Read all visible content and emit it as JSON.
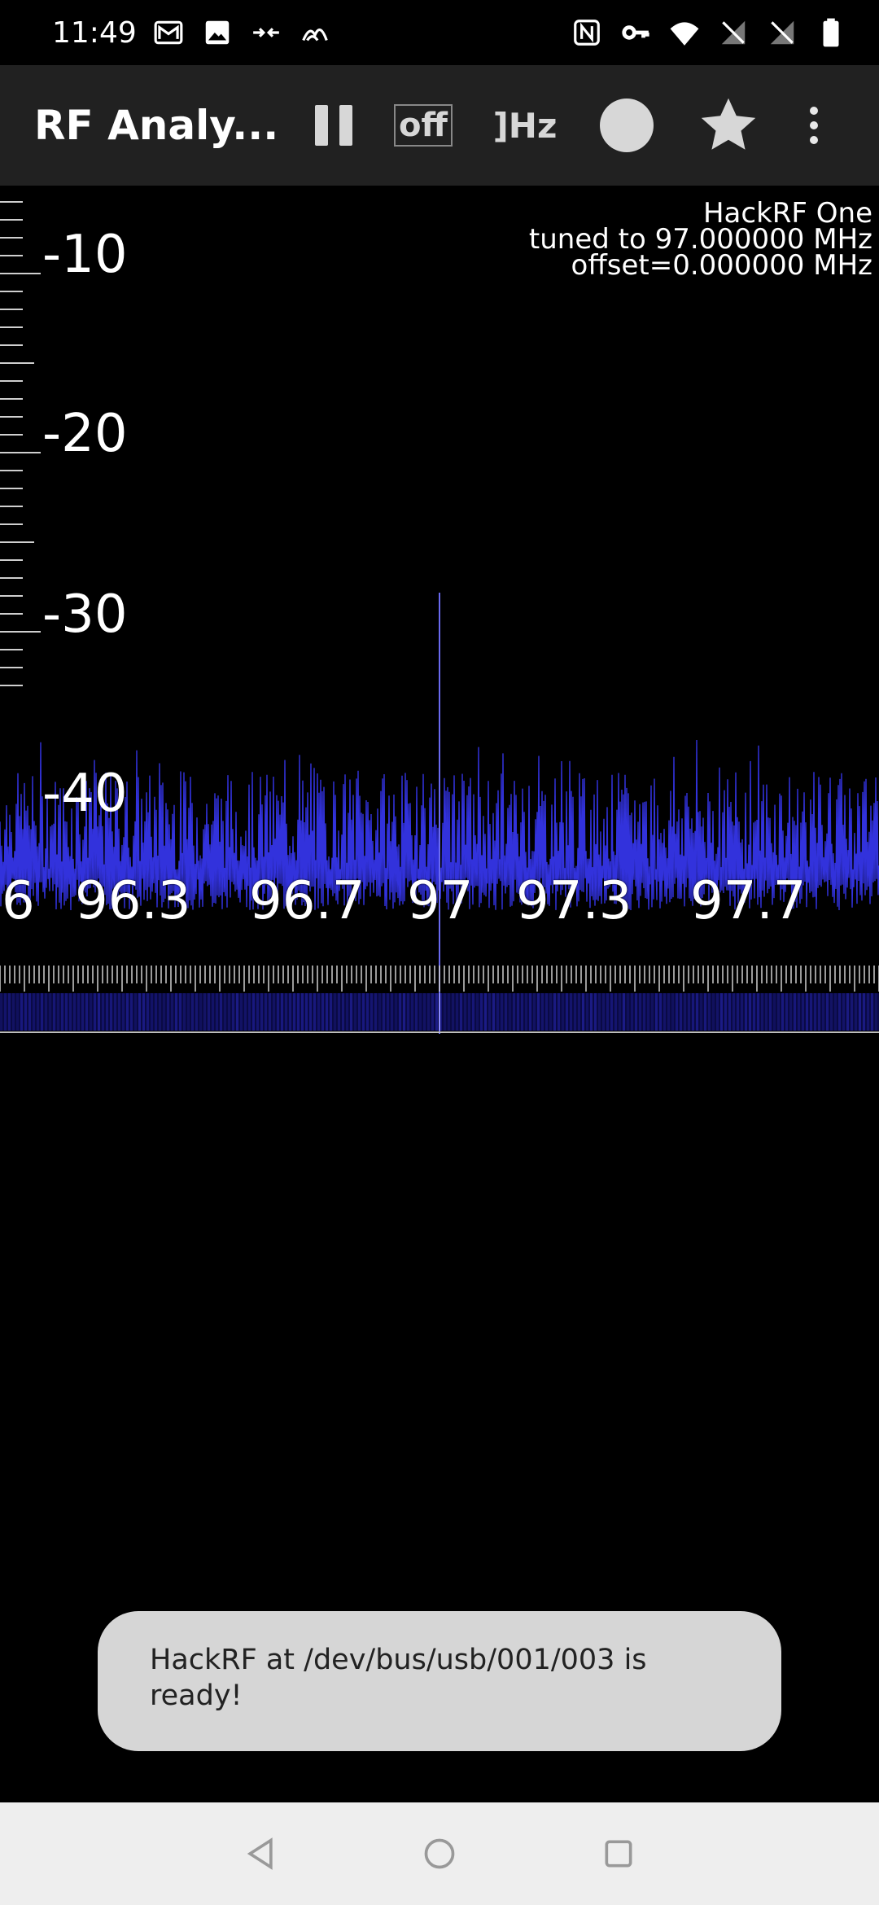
{
  "status_bar": {
    "time": "11:49",
    "left_icons": [
      "gmail-icon",
      "gallery-icon",
      "data-transfer-icon",
      "signal-wave-icon"
    ],
    "right_icons": [
      "nfc-icon",
      "vpn-key-icon",
      "wifi-icon",
      "no-signal-icon",
      "no-signal-icon",
      "battery-icon"
    ]
  },
  "app_bar": {
    "title": "RF Analy...",
    "off_label": "off",
    "hz_label": "]Hz"
  },
  "spectrum": {
    "device_name": "HackRF One",
    "tuned_text": "tuned to 97.000000 MHz",
    "offset_text": "offset=0.000000 MHz",
    "y_labels": [
      "-10",
      "-20",
      "-30",
      "-40"
    ],
    "x_labels": [
      "6",
      "96.3",
      "96.7",
      "97",
      "97.3",
      "97.7"
    ],
    "trace_color": "#3535e8",
    "peak_frequency_mhz": 97.0,
    "peak_level_db": -28
  },
  "toast": {
    "message": "HackRF at /dev/bus/usb/001/003 is ready!"
  },
  "nav_bar": {
    "icons": [
      "back-icon",
      "home-icon",
      "recents-icon"
    ]
  }
}
